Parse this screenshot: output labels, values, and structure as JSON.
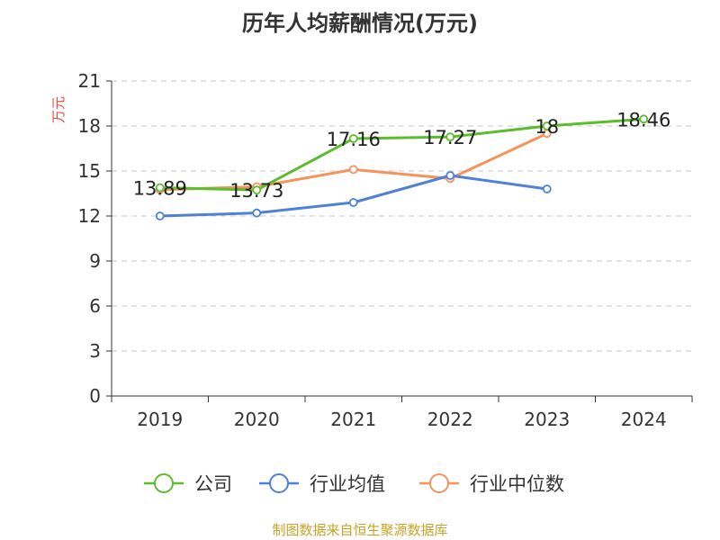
{
  "chart_data": {
    "type": "line",
    "title": "历年人均薪酬情况(万元)",
    "ylabel": "万元",
    "categories": [
      "2019",
      "2020",
      "2021",
      "2022",
      "2023",
      "2024"
    ],
    "ylim": [
      0,
      21
    ],
    "yticks": [
      0,
      3,
      6,
      9,
      12,
      15,
      18,
      21
    ],
    "grid": true,
    "legend_position": "bottom",
    "series": [
      {
        "name": "公司",
        "color": "#5bbd2b",
        "values": [
          13.89,
          13.73,
          17.16,
          17.27,
          18,
          18.46
        ],
        "labels": [
          "13.89",
          "13.73",
          "17.16",
          "17.27",
          "18",
          "18.46"
        ]
      },
      {
        "name": "行业均值",
        "color": "#4f81d6",
        "values": [
          12.0,
          12.2,
          12.9,
          14.7,
          13.8,
          null
        ]
      },
      {
        "name": "行业中位数",
        "color": "#f5935b",
        "values": [
          13.75,
          13.95,
          15.1,
          14.5,
          17.5,
          null
        ]
      }
    ]
  },
  "ylabel_color": "#e8483a",
  "source": {
    "text": "制图数据来自恒生聚源数据库",
    "color": "#c9a227"
  }
}
